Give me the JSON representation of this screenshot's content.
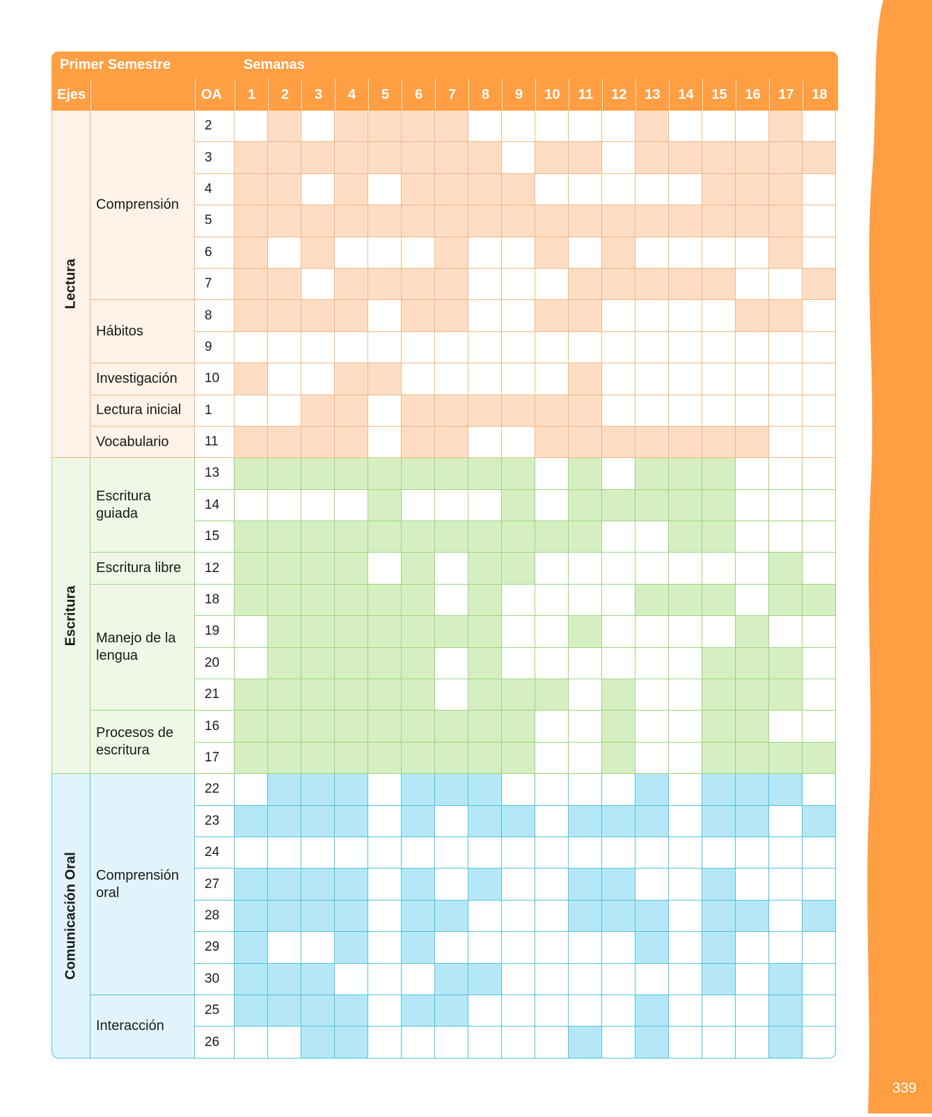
{
  "page_number": "339",
  "colors": {
    "band": "#FF9E42",
    "header": "#FF9E42",
    "sections": {
      "lectura": {
        "line": "#F5B682",
        "fill": "#FEDDC4",
        "bg": "#FFF2E8"
      },
      "escritura": {
        "line": "#9AD67A",
        "fill": "#D5EFC2",
        "bg": "#EFF8E7"
      },
      "oral": {
        "line": "#4FC3DF",
        "fill": "#B5E7F7",
        "bg": "#E2F4FB"
      }
    }
  },
  "header": {
    "semester": "Primer Semestre",
    "weeks_title": "Semanas",
    "ejes": "Ejes",
    "oa": "OA",
    "weeks": [
      "1",
      "2",
      "3",
      "4",
      "5",
      "6",
      "7",
      "8",
      "9",
      "10",
      "11",
      "12",
      "13",
      "14",
      "15",
      "16",
      "17",
      "18"
    ]
  },
  "sections": [
    {
      "axis": "Lectura",
      "theme": "lectura",
      "groups": [
        {
          "label": "Comprensión",
          "rows": [
            {
              "oa": "2",
              "weeks": [
                0,
                1,
                0,
                1,
                1,
                1,
                1,
                0,
                0,
                0,
                0,
                0,
                1,
                0,
                0,
                0,
                1,
                0
              ]
            },
            {
              "oa": "3",
              "weeks": [
                1,
                1,
                1,
                1,
                1,
                1,
                1,
                1,
                0,
                1,
                1,
                0,
                1,
                1,
                1,
                1,
                1,
                1
              ]
            },
            {
              "oa": "4",
              "weeks": [
                1,
                1,
                0,
                1,
                0,
                1,
                1,
                1,
                1,
                0,
                0,
                0,
                0,
                0,
                1,
                1,
                1,
                0
              ]
            },
            {
              "oa": "5",
              "weeks": [
                1,
                1,
                1,
                1,
                1,
                1,
                1,
                1,
                1,
                1,
                1,
                1,
                1,
                1,
                1,
                1,
                1,
                0
              ]
            },
            {
              "oa": "6",
              "weeks": [
                1,
                0,
                1,
                0,
                0,
                0,
                1,
                0,
                0,
                1,
                0,
                1,
                0,
                0,
                0,
                0,
                1,
                0
              ]
            },
            {
              "oa": "7",
              "weeks": [
                1,
                1,
                0,
                1,
                1,
                1,
                1,
                0,
                0,
                0,
                1,
                1,
                1,
                1,
                1,
                0,
                0,
                1
              ]
            }
          ]
        },
        {
          "label": "Hábitos",
          "rows": [
            {
              "oa": "8",
              "weeks": [
                1,
                1,
                1,
                1,
                0,
                1,
                1,
                0,
                0,
                1,
                1,
                0,
                0,
                0,
                0,
                1,
                1,
                0
              ]
            },
            {
              "oa": "9",
              "weeks": [
                0,
                0,
                0,
                0,
                0,
                0,
                0,
                0,
                0,
                0,
                0,
                0,
                0,
                0,
                0,
                0,
                0,
                0
              ]
            }
          ]
        },
        {
          "label": "Investigación",
          "rows": [
            {
              "oa": "10",
              "weeks": [
                1,
                0,
                0,
                1,
                1,
                0,
                0,
                0,
                0,
                0,
                1,
                0,
                0,
                0,
                0,
                0,
                0,
                0
              ]
            }
          ]
        },
        {
          "label": "Lectura inicial",
          "rows": [
            {
              "oa": "1",
              "weeks": [
                0,
                0,
                1,
                1,
                0,
                1,
                1,
                1,
                1,
                1,
                1,
                0,
                0,
                0,
                0,
                0,
                0,
                0
              ]
            }
          ]
        },
        {
          "label": "Vocabulario",
          "rows": [
            {
              "oa": "11",
              "weeks": [
                1,
                1,
                1,
                1,
                0,
                1,
                1,
                0,
                0,
                1,
                1,
                1,
                1,
                1,
                1,
                1,
                0,
                0
              ]
            }
          ]
        }
      ]
    },
    {
      "axis": "Escritura",
      "theme": "escritura",
      "groups": [
        {
          "label": "Escritura guiada",
          "rows": [
            {
              "oa": "13",
              "weeks": [
                1,
                1,
                1,
                1,
                1,
                1,
                1,
                1,
                1,
                0,
                1,
                0,
                1,
                1,
                1,
                0,
                0,
                0
              ]
            },
            {
              "oa": "14",
              "weeks": [
                0,
                0,
                0,
                0,
                1,
                0,
                0,
                0,
                1,
                0,
                1,
                1,
                1,
                1,
                1,
                0,
                0,
                0
              ]
            },
            {
              "oa": "15",
              "weeks": [
                1,
                1,
                1,
                1,
                1,
                1,
                1,
                1,
                1,
                1,
                1,
                0,
                0,
                1,
                1,
                0,
                0,
                0
              ]
            }
          ]
        },
        {
          "label": "Escritura libre",
          "rows": [
            {
              "oa": "12",
              "weeks": [
                1,
                1,
                1,
                1,
                0,
                1,
                0,
                1,
                1,
                0,
                0,
                0,
                0,
                0,
                0,
                0,
                1,
                0
              ]
            }
          ]
        },
        {
          "label": "Manejo de la lengua",
          "rows": [
            {
              "oa": "18",
              "weeks": [
                1,
                1,
                1,
                1,
                1,
                1,
                0,
                1,
                0,
                0,
                0,
                0,
                1,
                1,
                1,
                0,
                1,
                1
              ]
            },
            {
              "oa": "19",
              "weeks": [
                0,
                1,
                1,
                1,
                1,
                1,
                1,
                1,
                0,
                0,
                1,
                0,
                0,
                0,
                0,
                1,
                0,
                0
              ]
            },
            {
              "oa": "20",
              "weeks": [
                0,
                1,
                1,
                1,
                1,
                1,
                0,
                1,
                0,
                0,
                0,
                0,
                0,
                0,
                1,
                1,
                1,
                0
              ]
            },
            {
              "oa": "21",
              "weeks": [
                1,
                1,
                1,
                1,
                1,
                1,
                0,
                1,
                1,
                1,
                0,
                1,
                0,
                0,
                1,
                1,
                1,
                0
              ]
            }
          ]
        },
        {
          "label": "Procesos de escritura",
          "rows": [
            {
              "oa": "16",
              "weeks": [
                1,
                1,
                1,
                1,
                1,
                1,
                1,
                1,
                1,
                0,
                0,
                1,
                0,
                0,
                1,
                1,
                0,
                0
              ]
            },
            {
              "oa": "17",
              "weeks": [
                1,
                1,
                1,
                1,
                1,
                1,
                1,
                1,
                1,
                0,
                0,
                1,
                0,
                0,
                1,
                1,
                1,
                1
              ]
            }
          ]
        }
      ]
    },
    {
      "axis": "Comunicación Oral",
      "theme": "oral",
      "groups": [
        {
          "label": "Comprensión oral",
          "rows": [
            {
              "oa": "22",
              "weeks": [
                0,
                1,
                1,
                1,
                0,
                1,
                1,
                1,
                0,
                0,
                0,
                0,
                1,
                0,
                1,
                1,
                1,
                0
              ]
            },
            {
              "oa": "23",
              "weeks": [
                1,
                1,
                1,
                1,
                0,
                1,
                0,
                1,
                1,
                0,
                1,
                1,
                1,
                0,
                1,
                1,
                0,
                1
              ]
            },
            {
              "oa": "24",
              "weeks": [
                0,
                0,
                0,
                0,
                0,
                0,
                0,
                0,
                0,
                0,
                0,
                0,
                0,
                0,
                0,
                0,
                0,
                0
              ]
            },
            {
              "oa": "27",
              "weeks": [
                1,
                1,
                1,
                1,
                0,
                1,
                0,
                1,
                0,
                0,
                1,
                1,
                0,
                0,
                1,
                0,
                0,
                0
              ]
            },
            {
              "oa": "28",
              "weeks": [
                1,
                1,
                1,
                1,
                0,
                1,
                1,
                0,
                0,
                0,
                1,
                1,
                1,
                0,
                1,
                1,
                0,
                1
              ]
            },
            {
              "oa": "29",
              "weeks": [
                1,
                0,
                0,
                1,
                0,
                1,
                0,
                0,
                0,
                0,
                0,
                0,
                1,
                0,
                1,
                0,
                0,
                0
              ]
            },
            {
              "oa": "30",
              "weeks": [
                1,
                1,
                1,
                0,
                0,
                0,
                1,
                1,
                0,
                0,
                0,
                0,
                0,
                0,
                1,
                0,
                1,
                0
              ]
            }
          ]
        },
        {
          "label": "Interacción",
          "rows": [
            {
              "oa": "25",
              "weeks": [
                1,
                1,
                1,
                1,
                0,
                1,
                1,
                0,
                0,
                0,
                0,
                0,
                1,
                0,
                0,
                0,
                1,
                0
              ]
            },
            {
              "oa": "26",
              "weeks": [
                0,
                0,
                1,
                1,
                0,
                0,
                0,
                0,
                0,
                0,
                1,
                0,
                1,
                0,
                0,
                0,
                1,
                0
              ]
            }
          ]
        }
      ]
    }
  ]
}
